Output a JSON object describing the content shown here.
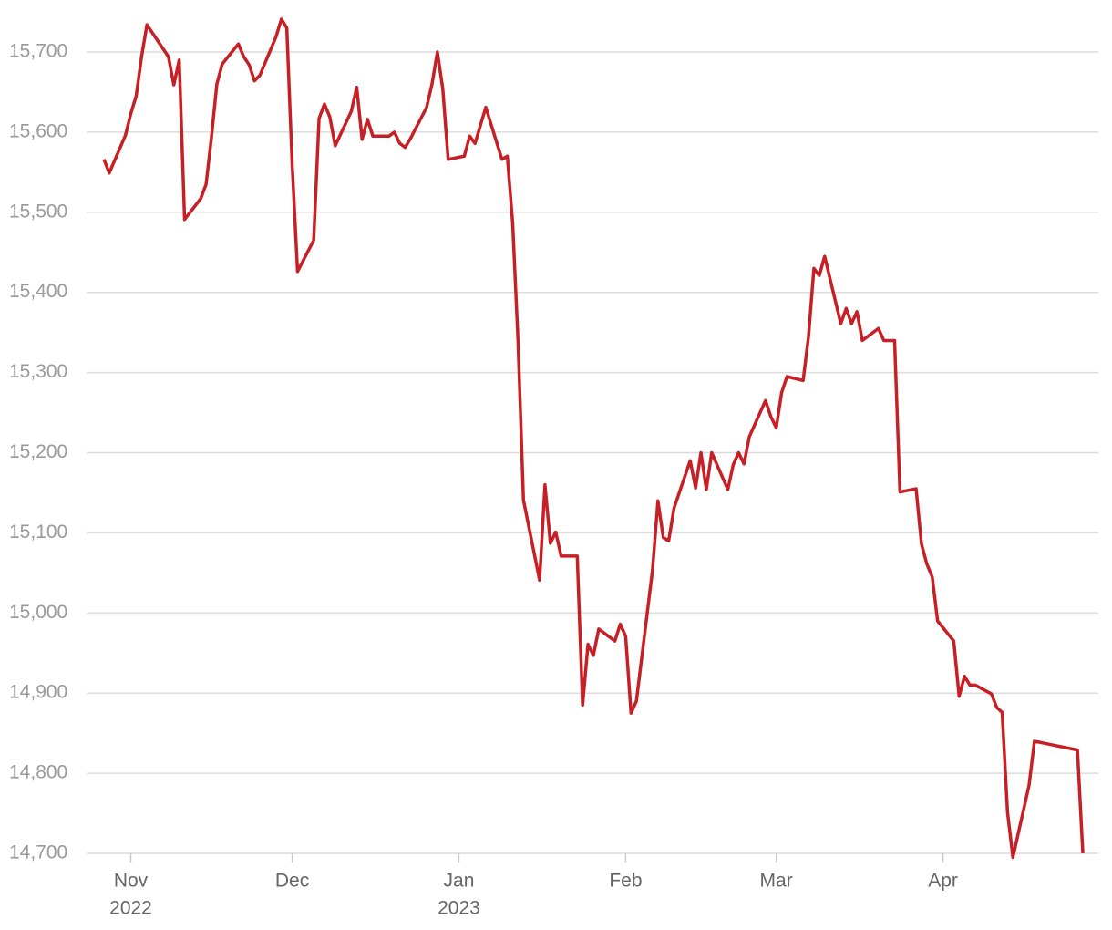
{
  "chart_data": {
    "type": "line",
    "x": [
      -5,
      -4,
      -1,
      0,
      1,
      2,
      3,
      7,
      8,
      9,
      10,
      13,
      14,
      15,
      16,
      17,
      20,
      21,
      22,
      23,
      24,
      27,
      28,
      29,
      30,
      31,
      34,
      35,
      36,
      37,
      38,
      41,
      42,
      43,
      44,
      45,
      48,
      49,
      50,
      51,
      52,
      55,
      56,
      57,
      58,
      59,
      62,
      63,
      64,
      66,
      69,
      70,
      71,
      72,
      73,
      76,
      77,
      78,
      79,
      80,
      83,
      84,
      85,
      86,
      87,
      90,
      91,
      92,
      93,
      94,
      97,
      98,
      99,
      100,
      101,
      104,
      105,
      106,
      107,
      108,
      111,
      112,
      113,
      114,
      115,
      118,
      119,
      120,
      121,
      122,
      125,
      126,
      127,
      128,
      129,
      132,
      133,
      134,
      135,
      136,
      139,
      140,
      142,
      143,
      146,
      147,
      148,
      149,
      150,
      153,
      154,
      155,
      156,
      157,
      160,
      161,
      162,
      163,
      164,
      167,
      168,
      176,
      177
    ],
    "series": [
      {
        "color": "#c62026",
        "values": [
          15566,
          15549,
          15596,
          15623,
          15645,
          15694,
          15734,
          15694,
          15659,
          15690,
          15491,
          15517,
          15535,
          15594,
          15660,
          15685,
          15710,
          15694,
          15684,
          15664,
          15671,
          15719,
          15741,
          15730,
          15560,
          15426,
          15465,
          15617,
          15635,
          15619,
          15583,
          15626,
          15656,
          15591,
          15616,
          15595,
          15595,
          15600,
          15586,
          15581,
          15592,
          15631,
          15660,
          15700,
          15654,
          15566,
          15570,
          15595,
          15586,
          15631,
          15566,
          15570,
          15486,
          15338,
          15141,
          15041,
          15160,
          15087,
          15101,
          15071,
          15071,
          14885,
          14961,
          14947,
          14980,
          14965,
          14986,
          14971,
          14875,
          14890,
          15054,
          15140,
          15094,
          15090,
          15131,
          15190,
          15156,
          15200,
          15154,
          15200,
          15154,
          15185,
          15200,
          15186,
          15220,
          15265,
          15245,
          15231,
          15275,
          15295,
          15290,
          15345,
          15430,
          15421,
          15445,
          15361,
          15380,
          15361,
          15376,
          15340,
          15355,
          15340,
          15340,
          15151,
          15155,
          15086,
          15061,
          15045,
          14990,
          14965,
          14896,
          14921,
          14910,
          14910,
          14899,
          14882,
          14876,
          14751,
          14695,
          14785,
          14840,
          14829,
          14700
        ]
      }
    ],
    "xlim": [
      -5,
      177
    ],
    "xticks": [
      {
        "value": 0,
        "label": [
          "Nov",
          "2022"
        ]
      },
      {
        "value": 30,
        "label": [
          "Dec"
        ]
      },
      {
        "value": 61,
        "label": [
          "Jan",
          "2023"
        ]
      },
      {
        "value": 92,
        "label": [
          "Feb"
        ]
      },
      {
        "value": 120,
        "label": [
          "Mar"
        ]
      },
      {
        "value": 151,
        "label": [
          "Apr"
        ]
      }
    ],
    "ylim": [
      14700,
      15700
    ],
    "yticks": [
      {
        "value": 14700,
        "label": "14,700"
      },
      {
        "value": 14800,
        "label": "14,800"
      },
      {
        "value": 14900,
        "label": "14,900"
      },
      {
        "value": 15000,
        "label": "15,000"
      },
      {
        "value": 15100,
        "label": "15,100"
      },
      {
        "value": 15200,
        "label": "15,200"
      },
      {
        "value": 15300,
        "label": "15,300"
      },
      {
        "value": 15400,
        "label": "15,400"
      },
      {
        "value": 15500,
        "label": "15,500"
      },
      {
        "value": 15600,
        "label": "15,600"
      },
      {
        "value": 15700,
        "label": "15,700"
      }
    ],
    "grid": true
  }
}
